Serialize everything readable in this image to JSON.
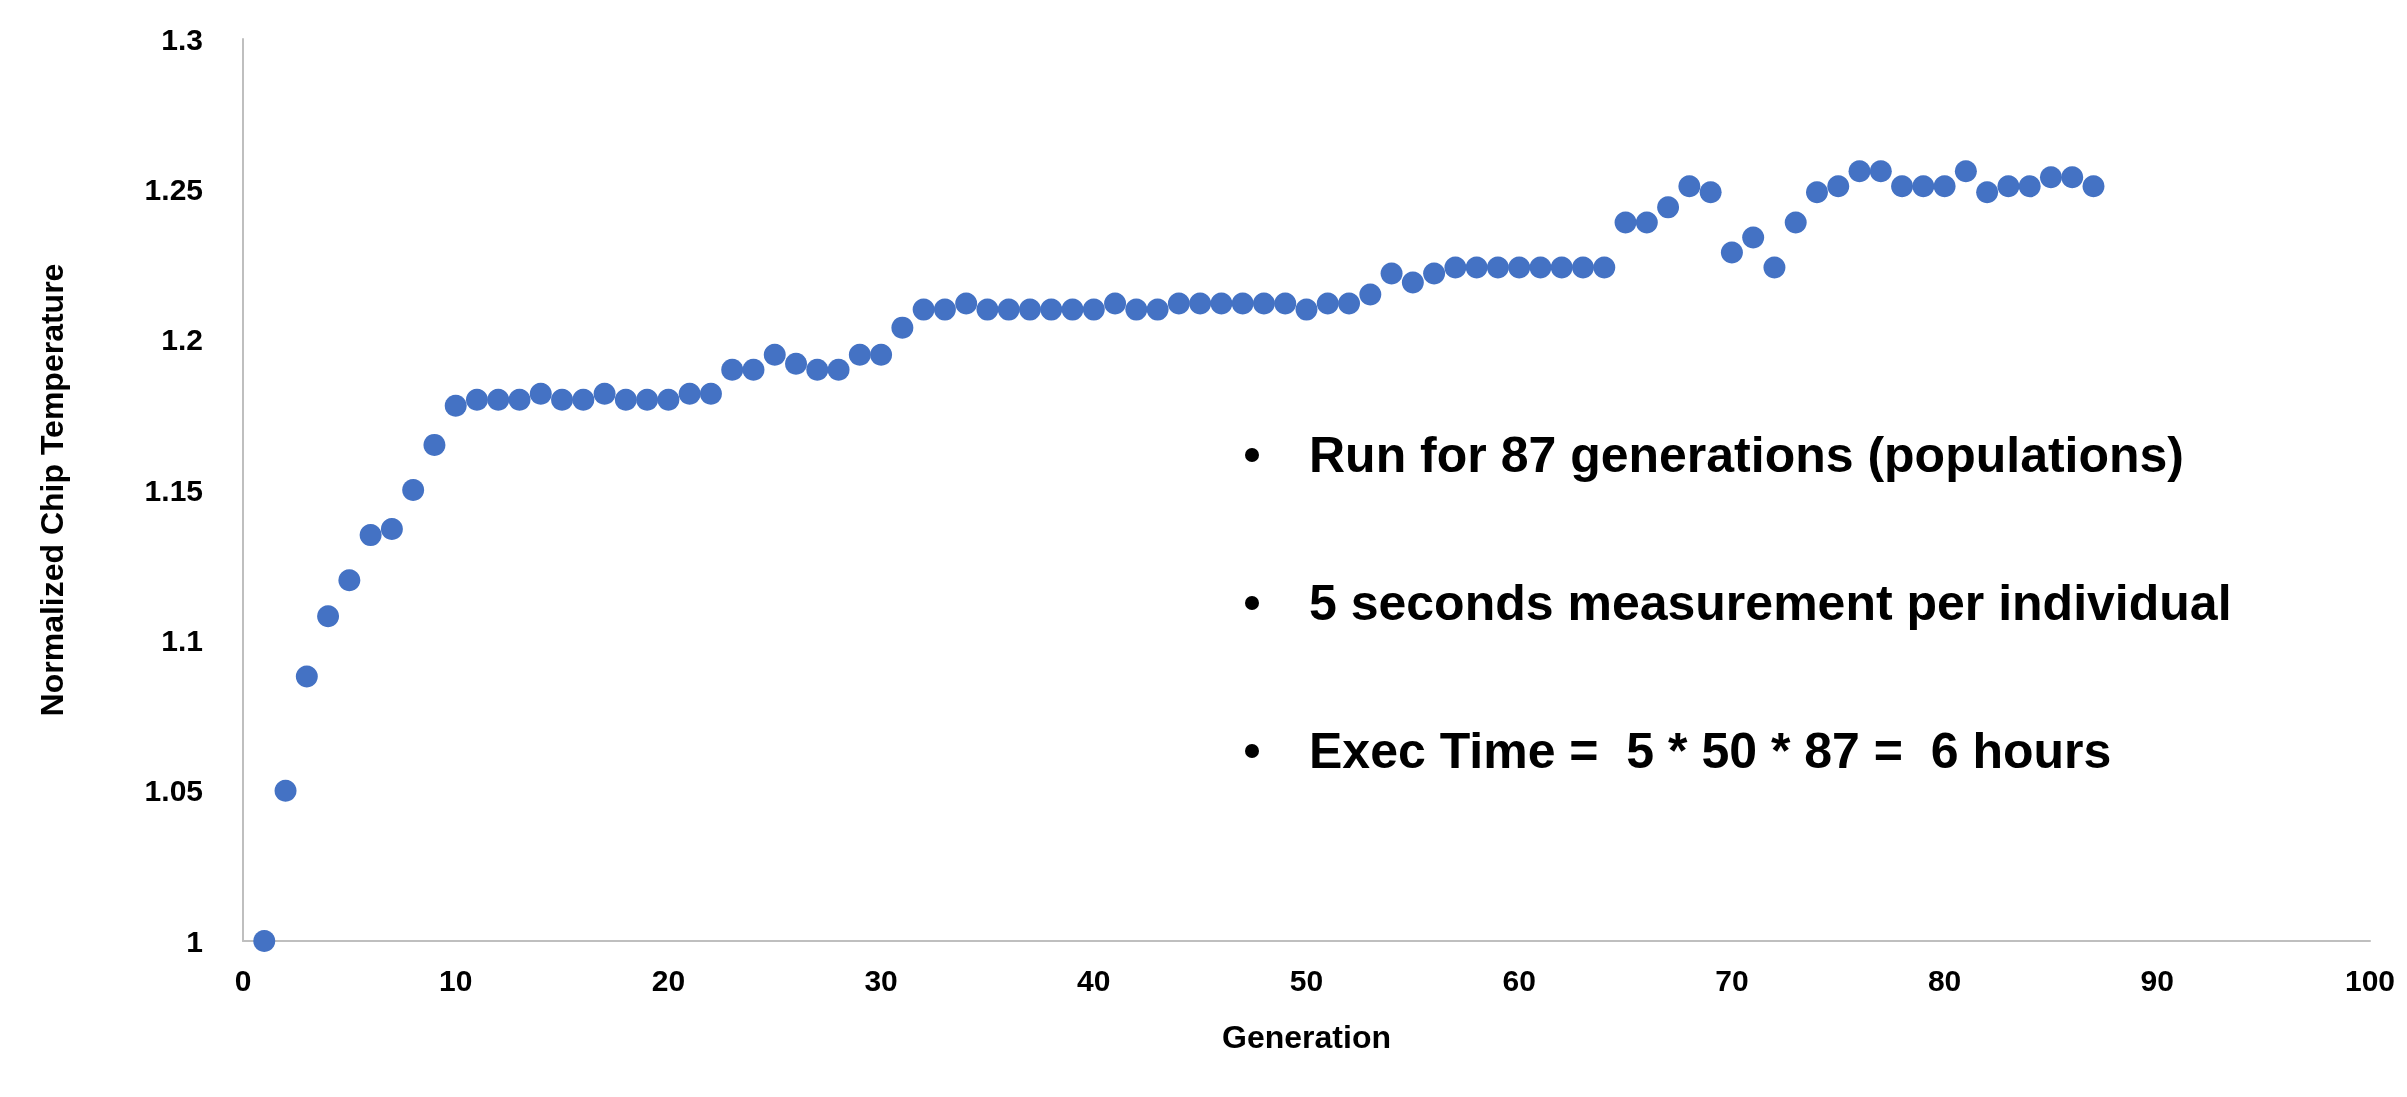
{
  "chart_data": {
    "type": "scatter",
    "xlabel": "Generation",
    "ylabel": "Normalized Chip Temperature",
    "x": [
      1,
      2,
      3,
      4,
      5,
      6,
      7,
      8,
      9,
      10,
      11,
      12,
      13,
      14,
      15,
      16,
      17,
      18,
      19,
      20,
      21,
      22,
      23,
      24,
      25,
      26,
      27,
      28,
      29,
      30,
      31,
      32,
      33,
      34,
      35,
      36,
      37,
      38,
      39,
      40,
      41,
      42,
      43,
      44,
      45,
      46,
      47,
      48,
      49,
      50,
      51,
      52,
      53,
      54,
      55,
      56,
      57,
      58,
      59,
      60,
      61,
      62,
      63,
      64,
      65,
      66,
      67,
      68,
      69,
      70,
      71,
      72,
      73,
      74,
      75,
      76,
      77,
      78,
      79,
      80,
      81,
      82,
      83,
      84,
      85,
      86,
      87
    ],
    "series": [
      {
        "color": "#4472c4",
        "values": [
          1.0,
          1.05,
          1.088,
          1.108,
          1.12,
          1.135,
          1.137,
          1.15,
          1.165,
          1.178,
          1.18,
          1.18,
          1.18,
          1.182,
          1.18,
          1.18,
          1.182,
          1.18,
          1.18,
          1.18,
          1.182,
          1.182,
          1.19,
          1.19,
          1.195,
          1.192,
          1.19,
          1.19,
          1.195,
          1.195,
          1.204,
          1.21,
          1.21,
          1.212,
          1.21,
          1.21,
          1.21,
          1.21,
          1.21,
          1.21,
          1.212,
          1.21,
          1.21,
          1.212,
          1.212,
          1.212,
          1.212,
          1.212,
          1.212,
          1.21,
          1.212,
          1.212,
          1.215,
          1.222,
          1.219,
          1.222,
          1.224,
          1.224,
          1.224,
          1.224,
          1.224,
          1.224,
          1.224,
          1.224,
          1.239,
          1.239,
          1.244,
          1.251,
          1.249,
          1.229,
          1.234,
          1.224,
          1.239,
          1.249,
          1.251,
          1.256,
          1.256,
          1.251,
          1.251,
          1.251,
          1.256,
          1.249,
          1.251,
          1.251,
          1.254,
          1.254,
          1.251
        ]
      }
    ],
    "xlim": [
      0,
      100
    ],
    "xticks": [
      0,
      10,
      20,
      30,
      40,
      50,
      60,
      70,
      80,
      90,
      100
    ],
    "ylim": [
      1,
      1.3
    ],
    "yticks": [
      1,
      1.05,
      1.1,
      1.15,
      1.2,
      1.25,
      1.3
    ],
    "marker": "circle",
    "annotations": [
      "Run for 87 generations (populations)",
      "5 seconds measurement per individual",
      "Exec Time =  5 * 50 * 87 =  6 hours"
    ]
  }
}
